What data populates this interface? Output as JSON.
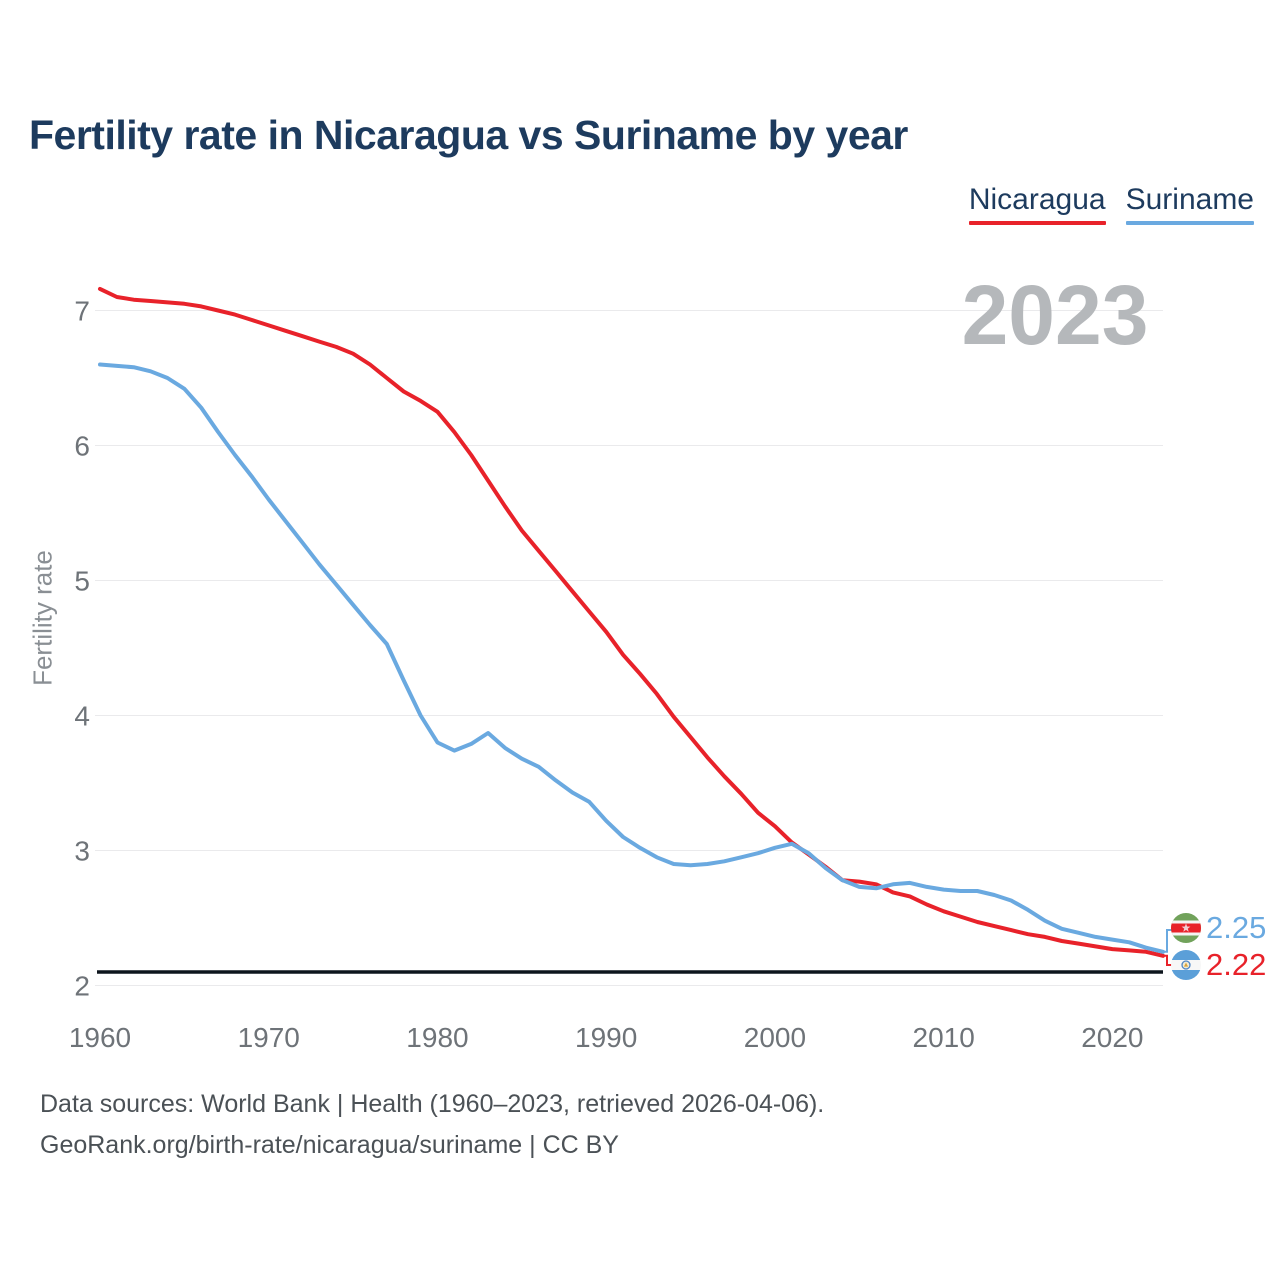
{
  "header": {
    "title": "Fertility rate in Nicaragua vs Suriname by year"
  },
  "legend": {
    "items": [
      {
        "label": "Nicaragua",
        "color": "#e8222a"
      },
      {
        "label": "Suriname",
        "color": "#6aa9e0"
      }
    ]
  },
  "chart_data": {
    "type": "line",
    "title": "Fertility rate in Nicaragua vs Suriname by year",
    "xlabel": "",
    "ylabel": "Fertility rate",
    "watermark": "2023",
    "grid": true,
    "legend_position": "top-right",
    "x_range": [
      1960,
      2023
    ],
    "y_range": [
      2,
      7.3
    ],
    "x_ticks": [
      1960,
      1970,
      1980,
      1990,
      2000,
      2010,
      2020
    ],
    "y_ticks": [
      2,
      3,
      4,
      5,
      6,
      7
    ],
    "x": [
      1960,
      1961,
      1962,
      1963,
      1964,
      1965,
      1966,
      1967,
      1968,
      1969,
      1970,
      1971,
      1972,
      1973,
      1974,
      1975,
      1976,
      1977,
      1978,
      1979,
      1980,
      1981,
      1982,
      1983,
      1984,
      1985,
      1986,
      1987,
      1988,
      1989,
      1990,
      1991,
      1992,
      1993,
      1994,
      1995,
      1996,
      1997,
      1998,
      1999,
      2000,
      2001,
      2002,
      2003,
      2004,
      2005,
      2006,
      2007,
      2008,
      2009,
      2010,
      2011,
      2012,
      2013,
      2014,
      2015,
      2016,
      2017,
      2018,
      2019,
      2020,
      2021,
      2022,
      2023
    ],
    "series": [
      {
        "name": "Nicaragua",
        "color": "#e8222a",
        "values": [
          7.16,
          7.1,
          7.08,
          7.07,
          7.06,
          7.05,
          7.03,
          7.0,
          6.97,
          6.93,
          6.89,
          6.85,
          6.81,
          6.77,
          6.73,
          6.68,
          6.6,
          6.5,
          6.4,
          6.33,
          6.25,
          6.1,
          5.93,
          5.74,
          5.55,
          5.37,
          5.22,
          5.07,
          4.92,
          4.77,
          4.62,
          4.45,
          4.31,
          4.16,
          3.99,
          3.84,
          3.69,
          3.55,
          3.42,
          3.28,
          3.18,
          3.06,
          2.97,
          2.88,
          2.78,
          2.77,
          2.75,
          2.69,
          2.66,
          2.6,
          2.55,
          2.51,
          2.47,
          2.44,
          2.41,
          2.38,
          2.36,
          2.33,
          2.31,
          2.29,
          2.27,
          2.26,
          2.25,
          2.22
        ]
      },
      {
        "name": "Suriname",
        "color": "#6aa9e0",
        "values": [
          6.6,
          6.59,
          6.58,
          6.55,
          6.5,
          6.42,
          6.28,
          6.1,
          5.93,
          5.77,
          5.6,
          5.44,
          5.28,
          5.12,
          4.97,
          4.82,
          4.67,
          4.53,
          4.26,
          4.0,
          3.8,
          3.74,
          3.79,
          3.87,
          3.76,
          3.68,
          3.62,
          3.52,
          3.43,
          3.36,
          3.22,
          3.1,
          3.02,
          2.95,
          2.9,
          2.89,
          2.9,
          2.92,
          2.95,
          2.98,
          3.02,
          3.05,
          2.98,
          2.87,
          2.78,
          2.73,
          2.72,
          2.75,
          2.76,
          2.73,
          2.71,
          2.7,
          2.7,
          2.67,
          2.63,
          2.56,
          2.48,
          2.42,
          2.39,
          2.36,
          2.34,
          2.32,
          2.28,
          2.25
        ]
      }
    ],
    "reference_line": {
      "value": 2.1,
      "color": "#0d151d"
    }
  },
  "end_labels": {
    "suriname": "2.25",
    "nicaragua": "2.22"
  },
  "footer": {
    "line1": "Data sources: World Bank | Health (1960–2023, retrieved 2026-04-06).",
    "line2": "GeoRank.org/birth-rate/nicaragua/suriname | CC BY"
  }
}
